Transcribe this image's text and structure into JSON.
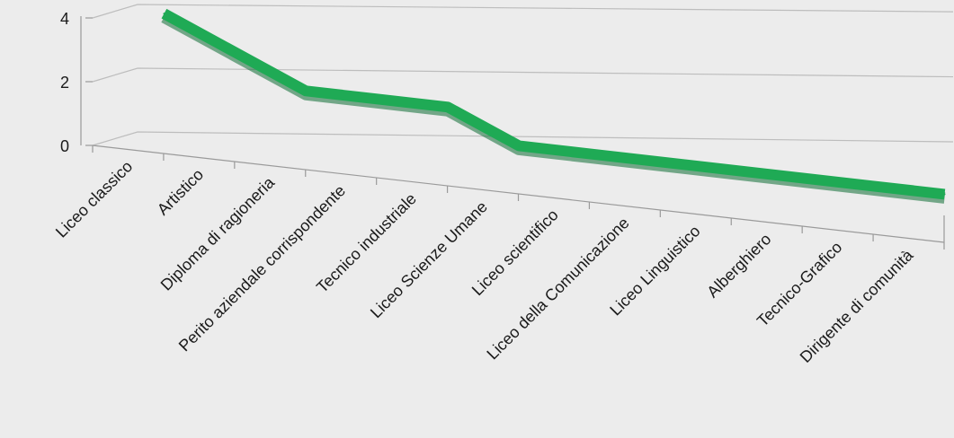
{
  "chart_data": {
    "type": "line",
    "view": "3d-perspective",
    "categories": [
      "Liceo classico",
      "Artistico",
      "Diploma di ragioneria",
      "Perito aziendale corrispondente",
      "Tecnico industriale",
      "Liceo Scienze Umane",
      "Liceo scientifico",
      "Liceo della Comunicazione",
      "Liceo Linguistico",
      "Alberghiero",
      "Tecnico-Grafico",
      "Dirigente di comunità"
    ],
    "series": [
      {
        "values": [
          4,
          3,
          2,
          2,
          2,
          1,
          1,
          1,
          1,
          1,
          1,
          1
        ]
      }
    ],
    "y_ticks": [
      "0",
      "2",
      "4"
    ],
    "ylim": [
      0,
      4
    ],
    "grid": true,
    "legend": "none",
    "title": "",
    "xlabel": "",
    "ylabel": ""
  },
  "colors": {
    "background": "#ececec",
    "line": "#1faa55",
    "line_shadow": "#0f6e35",
    "grid": "#bdbdbd",
    "axis": "#9a9a9a",
    "text": "#1a1a1a"
  }
}
